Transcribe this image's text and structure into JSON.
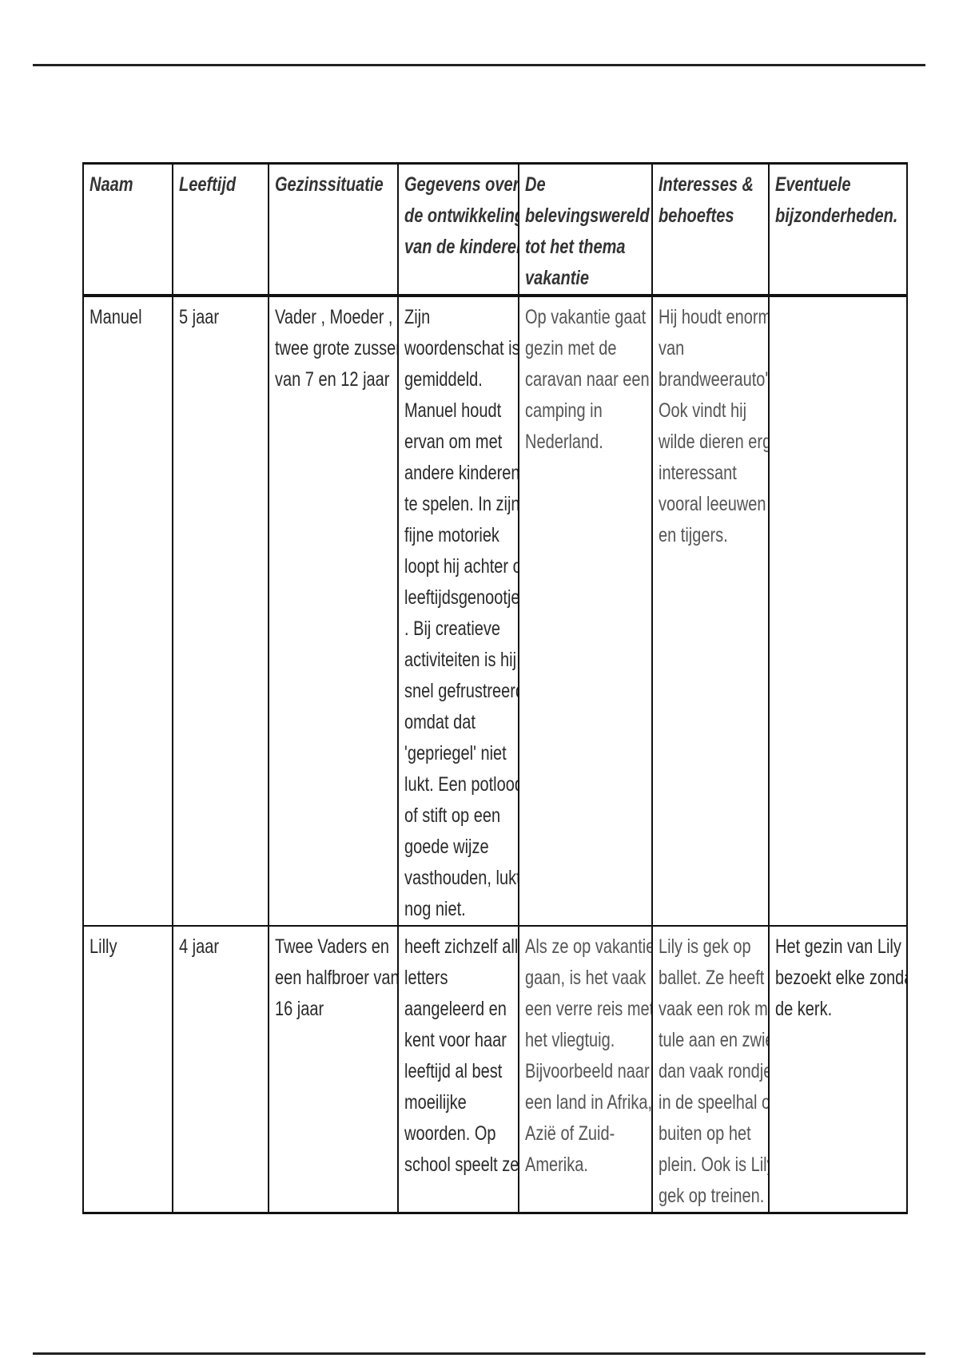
{
  "table": {
    "headers": [
      [
        "Naam"
      ],
      [
        "Leeftijd"
      ],
      [
        "Gezinssituatie"
      ],
      [
        "Gegevens over",
        "de ontwikkeling",
        "van de kinderen"
      ],
      [
        "De",
        "belevingswereld",
        "tot het thema",
        "vakantie"
      ],
      [
        "Interesses &",
        "behoeftes"
      ],
      [
        "Eventuele",
        "bijzonderheden."
      ]
    ],
    "rows": [
      [
        [
          "Manuel"
        ],
        [
          "5 jaar"
        ],
        [
          "Vader , Moeder ,",
          "twee grote zussen",
          "van 7 en 12 jaar"
        ],
        [
          "Zijn",
          "woordenschat is",
          "gemiddeld.",
          "Manuel houdt",
          "ervan om met",
          "andere kinderen",
          "te spelen. In zijn",
          "fijne motoriek",
          "loopt hij achter op",
          "leeftijdsgenootjes",
          ". Bij creatieve",
          "activiteiten is hij",
          "snel gefrustreerd",
          "omdat dat",
          "'gepriegel' niet",
          "lukt. Een potlood",
          "of stift op een",
          "goede wijze",
          "vasthouden, lukt",
          "nog niet."
        ],
        [
          "Op vakantie gaat het",
          "gezin met de",
          "caravan naar een",
          "camping in",
          "Nederland."
        ],
        [
          "Hij houdt enorm",
          "van",
          "brandweerauto's,",
          "Ook vindt hij",
          "wilde dieren erg",
          "interessant",
          "vooral leeuwen",
          "en tijgers."
        ],
        []
      ],
      [
        [
          "Lilly"
        ],
        [
          "4 jaar"
        ],
        [
          "Twee Vaders en",
          "een halfbroer van",
          "16 jaar"
        ],
        [
          "heeft zichzelf alle",
          "letters",
          "aangeleerd en",
          "kent voor haar",
          "leeftijd al best",
          "moeilijke",
          "woorden. Op",
          "school speelt ze"
        ],
        [
          "Als ze op vakantie",
          "gaan, is het vaak",
          "een verre reis met",
          "het vliegtuig.",
          "Bijvoorbeeld naar",
          "een land in Afrika,",
          "Azië of Zuid-",
          "Amerika."
        ],
        [
          "Lily is gek op",
          "ballet. Ze heeft",
          "vaak een rok met",
          "tule aan en zwiert",
          "dan vaak rondjes",
          "in de speelhal of",
          "buiten op het",
          "plein. Ook is Lily",
          "gek op treinen."
        ],
        [
          "Het gezin van Lily",
          "bezoekt elke zondag",
          "de kerk."
        ]
      ]
    ]
  }
}
